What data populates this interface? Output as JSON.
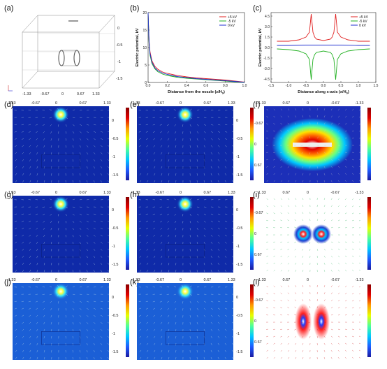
{
  "panel_labels": {
    "a": "(a)",
    "b": "(b)",
    "c": "(c)",
    "d": "(d)",
    "e": "(e)",
    "f": "(f)",
    "g": "(g)",
    "h": "(h)",
    "i": "(i)",
    "j": "(j)",
    "k": "(k)",
    "l": "(l)"
  },
  "axis_ticks_x_top": [
    "-1.33",
    "-0.67",
    "0",
    "0.67",
    "1.33"
  ],
  "axis_ticks_x_reversed": [
    "1.33",
    "0.67",
    "0",
    "-0.67",
    "-1.33"
  ],
  "axis_ticks_y_side": [
    "0",
    "-0.5",
    "-1",
    "-1.5"
  ],
  "axis_ticks_y_right_panel": [
    "-0.67",
    "0",
    "0.67"
  ],
  "panel_a_ticks_x": [
    "-1.33",
    "-0.67",
    "0",
    "0.67",
    "1.33"
  ],
  "panel_a_ticks_y": [
    "0",
    "-0.5",
    "-1",
    "-1.5"
  ],
  "chart_data": [
    {
      "type": "line",
      "panel": "b",
      "xlabel": "Distance from the nozzle (z/H",
      "xlabel_sub": "0",
      "xlabel_close": ")",
      "ylabel": "Electric potential, kV",
      "xlim": [
        0.0,
        1.0
      ],
      "ylim": [
        0,
        20
      ],
      "xticks": [
        "0.0",
        "0.2",
        "0.4",
        "0.6",
        "0.8",
        "1.0"
      ],
      "yticks": [
        "0",
        "5",
        "10",
        "15",
        "20"
      ],
      "legend_position": "top-right",
      "series": [
        {
          "name": "+5 kV",
          "color": "#e02020",
          "x": [
            0.0,
            0.01,
            0.02,
            0.04,
            0.07,
            0.1,
            0.15,
            0.2,
            0.3,
            0.4,
            0.5,
            0.6,
            0.7,
            0.8,
            0.9,
            1.0
          ],
          "y": [
            20.0,
            12.0,
            8.8,
            6.2,
            4.6,
            3.8,
            3.0,
            2.6,
            2.0,
            1.6,
            1.3,
            1.1,
            0.9,
            0.7,
            0.4,
            0.1
          ]
        },
        {
          "name": "-5 kV",
          "color": "#20b020",
          "x": [
            0.0,
            0.01,
            0.02,
            0.04,
            0.07,
            0.1,
            0.15,
            0.2,
            0.3,
            0.4,
            0.5,
            0.6,
            0.7,
            0.8,
            0.9,
            1.0
          ],
          "y": [
            20.0,
            11.2,
            7.8,
            5.4,
            3.9,
            3.1,
            2.4,
            2.0,
            1.5,
            1.2,
            1.0,
            0.8,
            0.6,
            0.4,
            0.2,
            0.0
          ]
        },
        {
          "name": "0 kV",
          "color": "#2030d0",
          "x": [
            0.0,
            0.01,
            0.02,
            0.04,
            0.07,
            0.1,
            0.15,
            0.2,
            0.3,
            0.4,
            0.5,
            0.6,
            0.7,
            0.8,
            0.9,
            1.0
          ],
          "y": [
            20.0,
            11.6,
            8.3,
            5.8,
            4.2,
            3.4,
            2.7,
            2.3,
            1.7,
            1.4,
            1.1,
            0.9,
            0.7,
            0.5,
            0.3,
            0.05
          ]
        }
      ]
    },
    {
      "type": "line",
      "panel": "c",
      "xlabel": "Distance along x-axis (x/H",
      "xlabel_sub": "0",
      "xlabel_close": ")",
      "ylabel": "Electric potential, kV",
      "xlim": [
        -1.5,
        1.5
      ],
      "ylim": [
        -5,
        5
      ],
      "xticks": [
        "-1.5",
        "-1.0",
        "-0.5",
        "0.0",
        "0.5",
        "1.0",
        "1.5"
      ],
      "yticks": [
        "-4.5",
        "-3.0",
        "-1.5",
        "0.0",
        "1.5",
        "3.0",
        "4.5"
      ],
      "legend_position": "top-right",
      "series": [
        {
          "name": "+5 kV",
          "color": "#e02020",
          "x": [
            -1.33,
            -1.0,
            -0.7,
            -0.5,
            -0.4,
            -0.35,
            -0.3,
            -0.25,
            -0.2,
            0.0,
            0.2,
            0.25,
            0.3,
            0.35,
            0.4,
            0.5,
            0.7,
            1.0,
            1.33
          ],
          "y": [
            0.9,
            0.9,
            1.1,
            1.5,
            2.2,
            4.8,
            2.2,
            1.5,
            1.2,
            1.0,
            1.2,
            1.5,
            2.2,
            4.8,
            2.2,
            1.5,
            1.1,
            0.9,
            0.9
          ]
        },
        {
          "name": "-5 kV",
          "color": "#20b020",
          "x": [
            -1.33,
            -1.0,
            -0.7,
            -0.5,
            -0.4,
            -0.35,
            -0.3,
            -0.25,
            -0.2,
            0.0,
            0.2,
            0.25,
            0.3,
            0.35,
            0.4,
            0.5,
            0.7,
            1.0,
            1.33
          ],
          "y": [
            -0.2,
            -0.3,
            -0.5,
            -0.9,
            -1.7,
            -4.6,
            -1.7,
            -1.0,
            -0.7,
            -0.5,
            -0.7,
            -1.0,
            -1.7,
            -4.6,
            -1.7,
            -0.9,
            -0.5,
            -0.3,
            -0.2
          ]
        },
        {
          "name": "0 kV",
          "color": "#2030d0",
          "x": [
            -1.33,
            -1.0,
            -0.5,
            0.0,
            0.5,
            1.0,
            1.33
          ],
          "y": [
            0.3,
            0.3,
            0.35,
            0.35,
            0.35,
            0.3,
            0.3
          ]
        }
      ]
    }
  ]
}
